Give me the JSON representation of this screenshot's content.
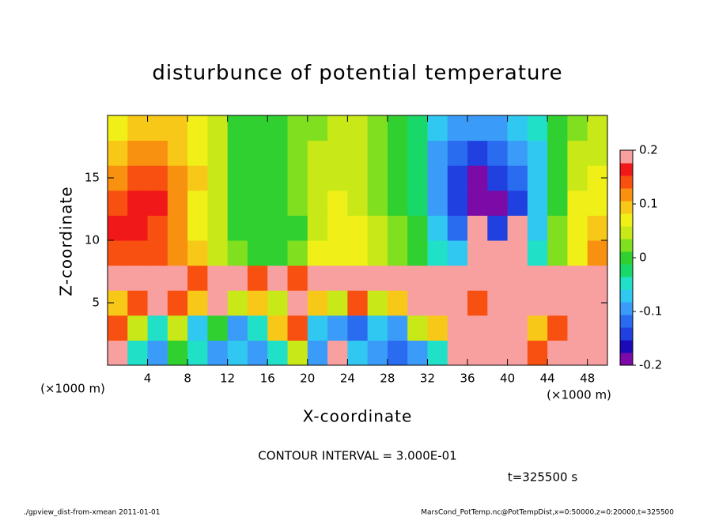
{
  "chart_data": {
    "type": "heatmap",
    "title": "disturbunce of potential temperature",
    "xlabel": "X-coordinate",
    "ylabel": "Z-coordinate",
    "x_unit_left": "(×1000 m)",
    "x_unit_right": "(×1000 m)",
    "annotation": "CONTOUR INTERVAL = 3.000E-01",
    "time_label": "t=325500 s",
    "footer_left": "./gpview_dist-from-xmean  2011-01-01",
    "footer_right": "MarsCond_PotTemp.nc@PotTempDist,x=0:50000,z=0:20000,t=325500",
    "xlim": [
      0,
      50
    ],
    "ylim": [
      0,
      20
    ],
    "xticks": [
      4,
      8,
      12,
      16,
      20,
      24,
      28,
      32,
      36,
      40,
      44,
      48
    ],
    "yticks": [
      5,
      10,
      15
    ],
    "clim": [
      -0.2,
      0.2
    ],
    "cticks": [
      -0.2,
      -0.1,
      0,
      0.1,
      0.2
    ],
    "colorscale": [
      "#7b0aa6",
      "#1c0ab8",
      "#2040e0",
      "#2a6cf0",
      "#3a9cf8",
      "#30c8f0",
      "#20e0c8",
      "#18d86a",
      "#30d030",
      "#80e020",
      "#c8e818",
      "#f0f018",
      "#f8c818",
      "#f89010",
      "#f85010",
      "#f01818",
      "#f8a0a0"
    ],
    "values": [
      [
        0.2,
        -0.05,
        -0.1,
        0,
        -0.05,
        -0.1,
        -0.08,
        -0.1,
        -0.05,
        0.05,
        -0.1,
        0.2,
        -0.08,
        -0.1,
        -0.12,
        -0.1,
        -0.05,
        0.2,
        0.2,
        0.2,
        0.2,
        0.15,
        0.2,
        0.2,
        0.2
      ],
      [
        0.15,
        0.05,
        -0.05,
        0.05,
        -0.08,
        0,
        -0.1,
        -0.05,
        0.1,
        0.15,
        -0.08,
        -0.1,
        -0.12,
        -0.08,
        -0.1,
        0.05,
        0.1,
        0.2,
        0.2,
        0.2,
        0.2,
        0.1,
        0.15,
        0.2,
        0.2
      ],
      [
        0.1,
        0.15,
        0.2,
        0.15,
        0.1,
        0.2,
        0.05,
        0.1,
        0.05,
        0.2,
        0.1,
        0.05,
        0.15,
        0.05,
        0.1,
        0.2,
        0.2,
        0.2,
        0.15,
        0.2,
        0.2,
        0.2,
        0.2,
        0.2,
        0.2
      ],
      [
        0.2,
        0.2,
        0.18,
        0.2,
        0.15,
        0.2,
        0.2,
        0.15,
        0.2,
        0.15,
        0.2,
        0.18,
        0.2,
        0.2,
        0.18,
        0.2,
        0.2,
        0.2,
        0.2,
        0.2,
        0.2,
        0.2,
        0.2,
        0.2,
        0.18
      ],
      [
        0.15,
        0.15,
        0.13,
        0.12,
        0.1,
        0.05,
        0.02,
        0,
        0,
        0.02,
        0.06,
        0.08,
        0.07,
        0.05,
        0.02,
        0,
        -0.05,
        -0.08,
        0.2,
        0.2,
        0.2,
        -0.05,
        0.02,
        0.08,
        0.12
      ],
      [
        0.16,
        0.17,
        0.15,
        0.12,
        0.08,
        0.04,
        0.01,
        0,
        -0.01,
        0.01,
        0.05,
        0.07,
        0.06,
        0.04,
        0.02,
        -0.01,
        -0.08,
        -0.12,
        0.2,
        -0.15,
        0.2,
        -0.08,
        0.02,
        0.07,
        0.1
      ],
      [
        0.14,
        0.17,
        0.16,
        0.12,
        0.08,
        0.04,
        0.01,
        -0.01,
        0,
        0.02,
        0.05,
        0.06,
        0.05,
        0.03,
        0.01,
        -0.02,
        -0.1,
        -0.15,
        -0.2,
        -0.18,
        -0.15,
        -0.08,
        0.01,
        0.06,
        0.08
      ],
      [
        0.12,
        0.15,
        0.15,
        0.12,
        0.09,
        0.05,
        0.01,
        0,
        0,
        0.02,
        0.04,
        0.05,
        0.05,
        0.03,
        0,
        -0.03,
        -0.1,
        -0.14,
        -0.18,
        -0.15,
        -0.12,
        -0.07,
        0,
        0.05,
        0.06
      ],
      [
        0.1,
        0.12,
        0.12,
        0.1,
        0.08,
        0.05,
        0.01,
        0,
        0.01,
        0.02,
        0.04,
        0.05,
        0.04,
        0.02,
        -0.01,
        -0.03,
        -0.09,
        -0.12,
        -0.13,
        -0.12,
        -0.1,
        -0.06,
        0,
        0.04,
        0.05
      ],
      [
        0.08,
        0.1,
        0.1,
        0.09,
        0.07,
        0.04,
        0.01,
        0,
        0.01,
        0.02,
        0.03,
        0.04,
        0.04,
        0.02,
        0,
        -0.03,
        -0.08,
        -0.1,
        -0.1,
        -0.09,
        -0.08,
        -0.05,
        0,
        0.03,
        0.04
      ]
    ]
  }
}
